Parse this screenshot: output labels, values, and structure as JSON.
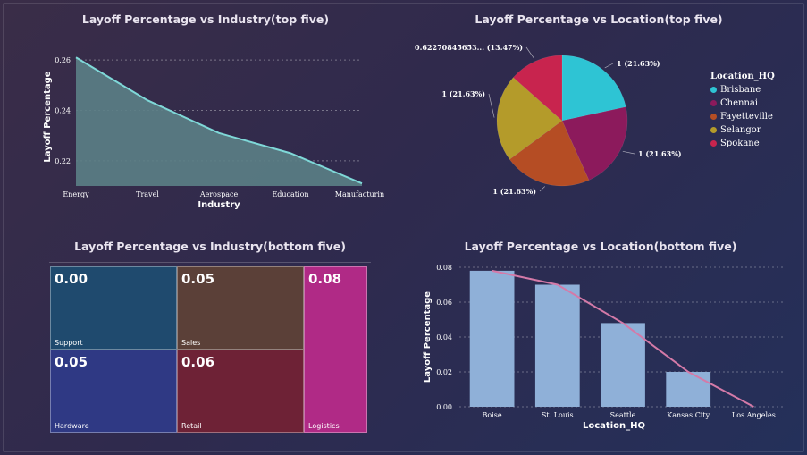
{
  "top_industry": {
    "title": "Layoff Percentage vs Industry(top five)",
    "chart_data": {
      "type": "area",
      "title": "Layoff Percentage vs Industry(top five)",
      "xlabel": "Industry",
      "ylabel": "Layoff Percentage",
      "categories": [
        "Energy",
        "Travel",
        "Aerospace",
        "Education",
        "Manufacturing"
      ],
      "values": [
        0.261,
        0.244,
        0.231,
        0.223,
        0.211
      ],
      "ylim": [
        0.21,
        0.265
      ],
      "yticks": [
        "0.26",
        "0.24",
        "0.22"
      ],
      "ytick_values": [
        0.26,
        0.24,
        0.22
      ],
      "grid": true,
      "colors": {
        "fill": "#5b7f86",
        "line": "#7fd8d8"
      }
    }
  },
  "top_location": {
    "title": "Layoff Percentage vs Location(top five)",
    "chart_data": {
      "type": "pie",
      "title": "Layoff Percentage vs Location(top five)",
      "legend_title": "Location_HQ",
      "legend_position": "right",
      "slices": [
        {
          "name": "Brisbane",
          "value": 21.63,
          "label": "1 (21.63%)",
          "color": "#2ec4d4"
        },
        {
          "name": "Chennai",
          "value": 21.63,
          "label": "1 (21.63%)",
          "color": "#8c1a5c"
        },
        {
          "name": "Fayetteville",
          "value": 21.63,
          "label": "1 (21.63%)",
          "color": "#b54d24"
        },
        {
          "name": "Selangor",
          "value": 21.63,
          "label": "1 (21.63%)",
          "color": "#b49b2a"
        },
        {
          "name": "Spokane",
          "value": 13.47,
          "label": "0.62270845653... (13.47%)",
          "color": "#c8244e"
        }
      ]
    }
  },
  "bottom_industry": {
    "title": "Layoff Percentage vs Industry(bottom five)",
    "cells": [
      {
        "label": "Support",
        "value": "0.00",
        "color": "#1f4a6e"
      },
      {
        "label": "Sales",
        "value": "0.05",
        "color": "#5b4038"
      },
      {
        "label": "Logistics",
        "value": "0.08",
        "color": "#b02a86"
      },
      {
        "label": "Hardware",
        "value": "0.05",
        "color": "#2f3984"
      },
      {
        "label": "Retail",
        "value": "0.06",
        "color": "#6e2236"
      }
    ]
  },
  "bottom_location": {
    "title": "Layoff Percentage vs Location(bottom five)",
    "chart_data": {
      "type": "bar",
      "title": "Layoff Percentage vs Location(bottom five)",
      "xlabel": "Location_HQ",
      "ylabel": "Layoff Percentage",
      "categories": [
        "Boise",
        "St. Louis",
        "Seattle",
        "Kansas City",
        "Los Angeles"
      ],
      "values": [
        0.078,
        0.07,
        0.048,
        0.02,
        0.0
      ],
      "line_values": [
        0.078,
        0.07,
        0.048,
        0.02,
        0.0
      ],
      "ylim": [
        0,
        0.08
      ],
      "yticks": [
        "0.00",
        "0.02",
        "0.04",
        "0.06",
        "0.08"
      ],
      "ytick_values": [
        0,
        0.02,
        0.04,
        0.06,
        0.08
      ],
      "grid": true,
      "colors": {
        "bar": "#8fb0d8",
        "line": "#d47aa8"
      }
    }
  }
}
